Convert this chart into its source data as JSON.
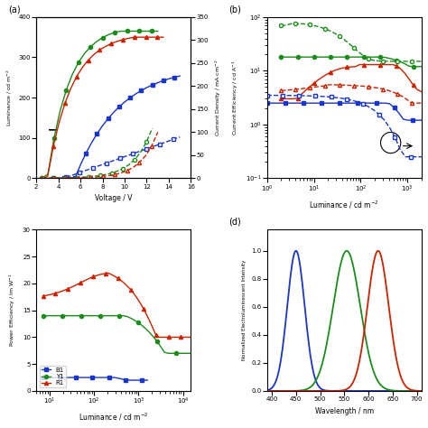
{
  "colors": {
    "blue": "#1a35cc",
    "green": "#1a8c1a",
    "red": "#cc2200"
  },
  "panel_a": {
    "xlabel": "Voltage / V",
    "ylabel_left": "Luminance / cd m$^{-2}$",
    "ylabel_right": "Current Density / mA cm$^{-2}$",
    "xlim": [
      2,
      16
    ],
    "ylim_left": [
      0,
      400
    ],
    "ylim_right": [
      0,
      350
    ],
    "title": "(a)"
  },
  "panel_b": {
    "xlabel": "Luminance / cd m$^{-2}$",
    "ylabel": "Current Efficiency / cd A$^{-1}$",
    "xlim_log": [
      0,
      3.3
    ],
    "ylim": [
      0.1,
      100
    ],
    "title": "(b)"
  },
  "panel_c": {
    "xlabel": "Luminance / cd m$^{-2}$",
    "ylabel": "Power Efficiency / lm W$^{-1}$",
    "xlim": [
      5,
      15000
    ],
    "ylim": [
      0,
      30
    ],
    "title": ""
  },
  "panel_d": {
    "xlabel": "Wavelength / nm",
    "ylabel": "Normalized Electroluminescent Intensity",
    "xlim": [
      390,
      710
    ],
    "ylim": [
      0,
      1.15
    ],
    "title": "(d)",
    "peaks": [
      450,
      555,
      620
    ],
    "sigmas": [
      18,
      28,
      22
    ]
  },
  "legend_labels": [
    "B1",
    "Y1",
    "R1"
  ],
  "legend_markers": [
    "s",
    "o",
    "^"
  ]
}
